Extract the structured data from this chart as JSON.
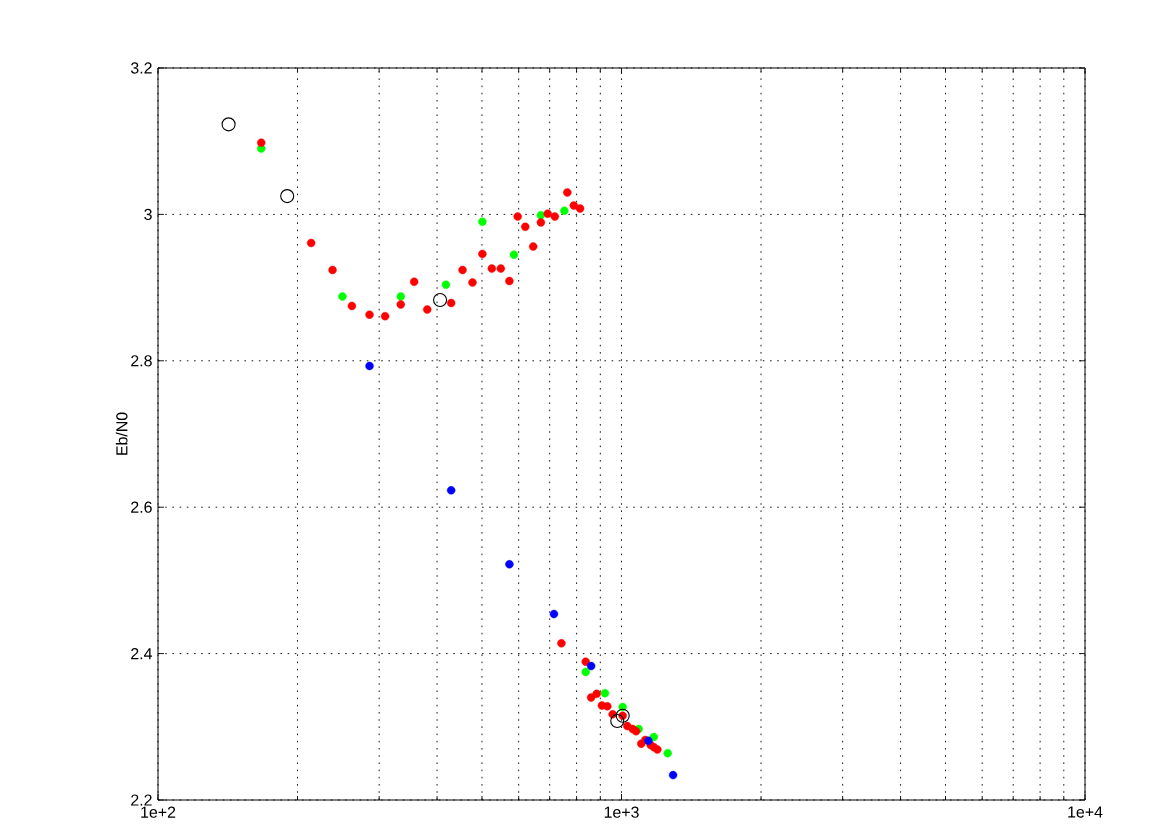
{
  "chart_data": {
    "type": "scatter",
    "ylabel": "Eb/N0",
    "log": "x",
    "grid": true,
    "marker": "circle",
    "xlim": [
      100,
      10000
    ],
    "ylim": [
      2.2,
      3.2
    ],
    "xticks": [
      {
        "value": 100,
        "label": "1e+2"
      },
      {
        "value": 1000,
        "label": "1e+3"
      },
      {
        "value": 10000,
        "label": "1e+4"
      }
    ],
    "yticks": [
      2.2,
      2.4,
      2.6,
      2.8,
      3,
      3.2
    ],
    "series": [
      {
        "color": "#00ff00",
        "x": [
          167,
          250,
          334,
          418,
          501,
          586,
          670,
          753,
          837,
          921,
          1006,
          1089,
          1174,
          1258
        ],
        "values": [
          3.09,
          2.888,
          2.888,
          2.904,
          2.99,
          2.945,
          2.999,
          3.005,
          2.375,
          2.346,
          2.327,
          2.297,
          2.286,
          2.264
        ]
      },
      {
        "color": "#ff0000",
        "x": [
          167,
          214,
          238,
          262,
          286,
          309,
          334,
          357,
          381,
          429,
          454,
          477,
          501,
          525,
          549,
          573,
          597,
          620,
          645,
          670,
          693,
          718,
          764,
          789,
          814,
          742,
          837,
          860,
          884,
          907,
          932,
          957,
          1006,
          1029,
          1057,
          1075,
          1103,
          1125,
          1156,
          1175,
          1195
        ],
        "values": [
          3.098,
          2.961,
          2.924,
          2.875,
          2.863,
          2.861,
          2.877,
          2.908,
          2.87,
          2.879,
          2.924,
          2.907,
          2.946,
          2.926,
          2.926,
          2.909,
          2.997,
          2.983,
          2.956,
          2.989,
          3.001,
          2.997,
          3.03,
          3.012,
          3.008,
          2.414,
          2.389,
          2.34,
          2.345,
          2.329,
          2.328,
          2.317,
          2.315,
          2.301,
          2.297,
          2.294,
          2.277,
          2.282,
          2.275,
          2.272,
          2.269
        ]
      },
      {
        "color": "#0000ff",
        "x": [
          286,
          429,
          573,
          715,
          860,
          1143,
          1292
        ],
        "values": [
          2.793,
          2.623,
          2.522,
          2.454,
          2.383,
          2.281,
          2.234
        ]
      },
      {
        "color": "#000000",
        "marker": "circle",
        "x": [
          142,
          190,
          406,
          979,
          1006
        ],
        "values": [
          3.123,
          3.025,
          2.883,
          2.308,
          2.315
        ]
      }
    ]
  }
}
